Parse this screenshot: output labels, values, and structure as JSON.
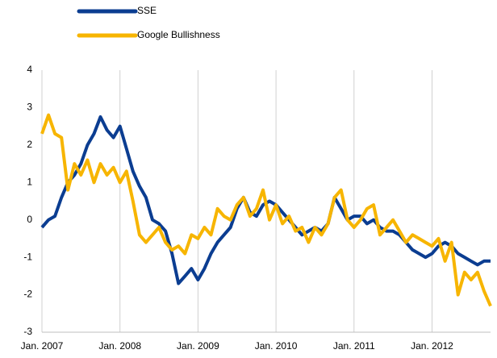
{
  "chart_data": {
    "type": "line",
    "x": [
      "2007-01",
      "2007-02",
      "2007-03",
      "2007-04",
      "2007-05",
      "2007-06",
      "2007-07",
      "2007-08",
      "2007-09",
      "2007-10",
      "2007-11",
      "2007-12",
      "2008-01",
      "2008-02",
      "2008-03",
      "2008-04",
      "2008-05",
      "2008-06",
      "2008-07",
      "2008-08",
      "2008-09",
      "2008-10",
      "2008-11",
      "2008-12",
      "2009-01",
      "2009-02",
      "2009-03",
      "2009-04",
      "2009-05",
      "2009-06",
      "2009-07",
      "2009-08",
      "2009-09",
      "2009-10",
      "2009-11",
      "2009-12",
      "2010-01",
      "2010-02",
      "2010-03",
      "2010-04",
      "2010-05",
      "2010-06",
      "2010-07",
      "2010-08",
      "2010-09",
      "2010-10",
      "2010-11",
      "2010-12",
      "2011-01",
      "2011-02",
      "2011-03",
      "2011-04",
      "2011-05",
      "2011-06",
      "2011-07",
      "2011-08",
      "2011-09",
      "2011-10",
      "2011-11",
      "2011-12",
      "2012-01",
      "2012-02",
      "2012-03",
      "2012-04",
      "2012-05",
      "2012-06",
      "2012-07",
      "2012-08",
      "2012-09",
      "2012-10"
    ],
    "series": [
      {
        "name": "SSE",
        "color": "#0b3d91",
        "values": [
          -0.2,
          0.0,
          0.1,
          0.6,
          1.0,
          1.2,
          1.5,
          2.0,
          2.3,
          2.75,
          2.4,
          2.2,
          2.5,
          1.9,
          1.3,
          0.9,
          0.6,
          0.0,
          -0.1,
          -0.3,
          -0.9,
          -1.7,
          -1.5,
          -1.3,
          -1.6,
          -1.3,
          -0.9,
          -0.6,
          -0.4,
          -0.2,
          0.3,
          0.6,
          0.2,
          0.1,
          0.4,
          0.5,
          0.4,
          0.2,
          0.0,
          -0.2,
          -0.4,
          -0.3,
          -0.2,
          -0.3,
          -0.1,
          0.6,
          0.3,
          0.0,
          0.1,
          0.1,
          -0.1,
          0.0,
          -0.2,
          -0.3,
          -0.3,
          -0.4,
          -0.6,
          -0.8,
          -0.9,
          -1.0,
          -0.9,
          -0.7,
          -0.6,
          -0.7,
          -0.9,
          -1.0,
          -1.1,
          -1.2,
          -1.1,
          -1.1
        ]
      },
      {
        "name": "Google Bullishness",
        "color": "#f7b500",
        "values": [
          2.3,
          2.8,
          2.3,
          2.2,
          0.8,
          1.5,
          1.2,
          1.6,
          1.0,
          1.5,
          1.2,
          1.4,
          1.0,
          1.3,
          0.5,
          -0.4,
          -0.6,
          -0.4,
          -0.2,
          -0.6,
          -0.8,
          -0.7,
          -0.9,
          -0.4,
          -0.5,
          -0.2,
          -0.4,
          0.3,
          0.1,
          0.0,
          0.4,
          0.6,
          0.1,
          0.3,
          0.8,
          0.0,
          0.4,
          -0.1,
          0.1,
          -0.3,
          -0.2,
          -0.6,
          -0.2,
          -0.4,
          -0.1,
          0.6,
          0.8,
          0.0,
          -0.2,
          0.0,
          0.3,
          0.4,
          -0.4,
          -0.2,
          0.0,
          -0.3,
          -0.6,
          -0.4,
          -0.5,
          -0.6,
          -0.7,
          -0.5,
          -1.1,
          -0.6,
          -2.0,
          -1.4,
          -1.6,
          -1.4,
          -1.9,
          -2.3
        ]
      }
    ],
    "xlim": [
      "2007-01",
      "2012-10"
    ],
    "xticks": [
      {
        "value": "2007-01",
        "label": "Jan. 2007"
      },
      {
        "value": "2008-01",
        "label": "Jan. 2008"
      },
      {
        "value": "2009-01",
        "label": "Jan. 2009"
      },
      {
        "value": "2010-01",
        "label": "Jan. 2010"
      },
      {
        "value": "2011-01",
        "label": "Jan. 2011"
      },
      {
        "value": "2012-01",
        "label": "Jan. 2012"
      }
    ],
    "ylim": [
      -3,
      4
    ],
    "yticks": [
      4,
      3,
      2,
      1,
      0,
      -1,
      -2,
      -3
    ],
    "grid": "x",
    "legend": "top-left"
  }
}
